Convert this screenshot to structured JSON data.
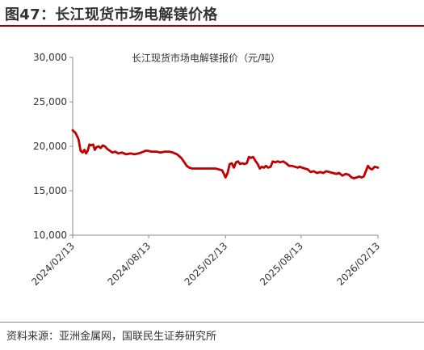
{
  "figure_title": "图47：长江现货市场电解镁价格",
  "source": "资料来源：亚洲金属网，国联民生证券研究所",
  "colors": {
    "line": "#c00000",
    "title_rule": "#a50000",
    "axis": "#888888"
  },
  "chart_data": {
    "type": "line",
    "title": "长江现货市场电解镁报价（元/吨）",
    "xlabel": "",
    "ylabel": "",
    "ylim": [
      10000,
      30000
    ],
    "yticks": [
      10000,
      15000,
      20000,
      25000,
      30000
    ],
    "ytick_labels": [
      "10,000",
      "15,000",
      "20,000",
      "25,000",
      "30,000"
    ],
    "xlim": [
      "2024-02-13",
      "2026-02-13"
    ],
    "xticks": [
      "2024-02-13",
      "2024-08-13",
      "2025-02-13",
      "2025-08-13",
      "2026-02-13"
    ],
    "xtick_labels": [
      "2024/02/13",
      "2024/08/13",
      "2025/02/13",
      "2025/08/13",
      "2026/02/13"
    ],
    "grid": false,
    "series": [
      {
        "x": [
          "2024-02-13",
          "2024-02-20",
          "2024-02-27",
          "2024-03-03",
          "2024-03-08",
          "2024-03-12",
          "2024-03-16",
          "2024-03-20",
          "2024-03-24",
          "2024-03-28",
          "2024-04-02",
          "2024-04-06",
          "2024-04-10",
          "2024-04-15",
          "2024-04-20",
          "2024-04-25",
          "2024-04-30",
          "2024-05-06",
          "2024-05-12",
          "2024-05-18",
          "2024-05-25",
          "2024-06-01",
          "2024-06-10",
          "2024-06-20",
          "2024-07-01",
          "2024-07-10",
          "2024-07-20",
          "2024-08-01",
          "2024-08-05",
          "2024-08-10",
          "2024-08-20",
          "2024-09-01",
          "2024-09-10",
          "2024-09-20",
          "2024-10-01",
          "2024-10-10",
          "2024-10-20",
          "2024-10-30",
          "2024-11-05",
          "2024-11-12",
          "2024-11-18",
          "2024-11-25",
          "2024-12-10",
          "2025-01-01",
          "2025-01-20",
          "2025-02-05",
          "2025-02-13",
          "2025-02-18",
          "2025-02-23",
          "2025-02-28",
          "2025-03-05",
          "2025-03-10",
          "2025-03-15",
          "2025-03-20",
          "2025-03-25",
          "2025-03-30",
          "2025-04-05",
          "2025-04-10",
          "2025-04-15",
          "2025-04-20",
          "2025-04-25",
          "2025-05-01",
          "2025-05-06",
          "2025-05-11",
          "2025-05-16",
          "2025-05-21",
          "2025-05-26",
          "2025-06-01",
          "2025-06-06",
          "2025-06-12",
          "2025-06-18",
          "2025-06-24",
          "2025-07-01",
          "2025-07-08",
          "2025-07-15",
          "2025-07-22",
          "2025-07-29",
          "2025-08-05",
          "2025-08-10",
          "2025-08-15",
          "2025-08-22",
          "2025-08-29",
          "2025-09-05",
          "2025-09-12",
          "2025-09-20",
          "2025-09-28",
          "2025-10-05",
          "2025-10-12",
          "2025-10-20",
          "2025-10-28",
          "2025-11-05",
          "2025-11-12",
          "2025-11-20",
          "2025-11-28",
          "2025-12-05",
          "2025-12-12",
          "2025-12-18",
          "2025-12-24",
          "2025-12-30",
          "2026-01-05",
          "2026-01-10",
          "2026-01-15",
          "2026-01-20",
          "2026-01-25",
          "2026-01-30",
          "2026-02-05",
          "2026-02-13"
        ],
        "y": [
          21800,
          21500,
          20800,
          19500,
          19300,
          19600,
          19200,
          19500,
          20200,
          20100,
          20200,
          19600,
          19900,
          20000,
          19800,
          20100,
          20000,
          19700,
          19500,
          19300,
          19400,
          19200,
          19300,
          19100,
          19200,
          19100,
          19200,
          19400,
          19500,
          19500,
          19400,
          19400,
          19300,
          19400,
          19400,
          19300,
          19100,
          18700,
          18300,
          17800,
          17600,
          17500,
          17500,
          17500,
          17500,
          17300,
          16500,
          17000,
          18000,
          18100,
          17600,
          18200,
          18300,
          18000,
          18100,
          18000,
          18100,
          18800,
          18700,
          18800,
          18400,
          18000,
          17500,
          17700,
          17600,
          17800,
          17600,
          17700,
          18300,
          18200,
          18300,
          18200,
          18300,
          18100,
          17800,
          17800,
          17700,
          17600,
          17700,
          17600,
          17500,
          17400,
          17100,
          17200,
          17000,
          17100,
          17000,
          17200,
          17100,
          17000,
          16900,
          17000,
          16700,
          16900,
          16800,
          16500,
          16400,
          16500,
          16600,
          16500,
          16600,
          17200,
          17800,
          17500,
          17400,
          17700,
          17600
        ]
      }
    ]
  }
}
